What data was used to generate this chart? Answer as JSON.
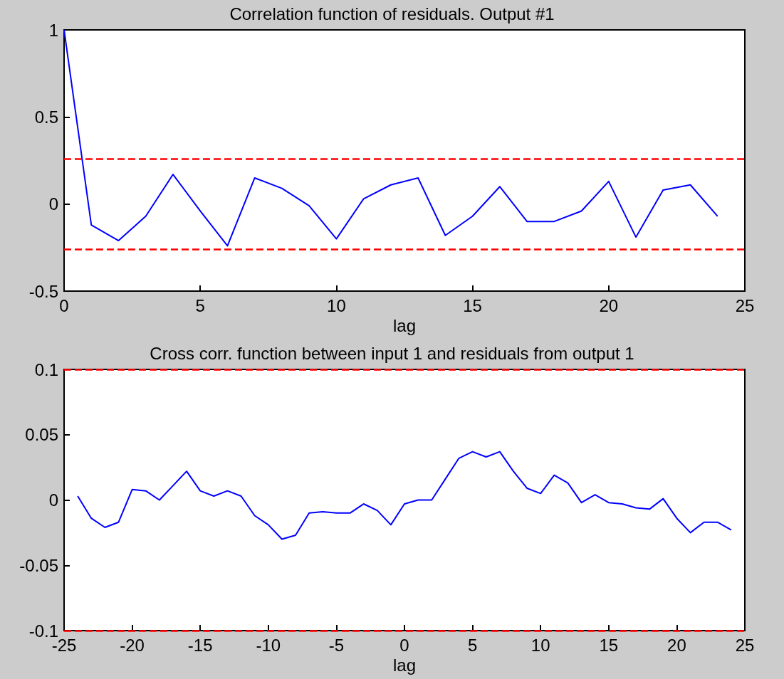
{
  "chart_data": [
    {
      "type": "line",
      "title": "Correlation function of residuals. Output #1",
      "xlabel": "lag",
      "x": [
        0,
        1,
        2,
        3,
        4,
        5,
        6,
        7,
        8,
        9,
        10,
        11,
        12,
        13,
        14,
        15,
        16,
        17,
        18,
        19,
        20,
        21,
        22,
        23,
        24
      ],
      "series": [
        {
          "color": "#0000ff",
          "values": [
            1,
            -0.12,
            -0.21,
            -0.07,
            0.17,
            -0.04,
            -0.24,
            0.15,
            0.09,
            -0.01,
            -0.2,
            0.03,
            0.11,
            0.15,
            -0.18,
            -0.07,
            0.1,
            -0.1,
            -0.1,
            -0.04,
            0.13,
            -0.19,
            0.08,
            0.11,
            -0.07
          ]
        }
      ],
      "xlim": [
        0,
        25
      ],
      "xticks": [
        0,
        5,
        10,
        15,
        20,
        25
      ],
      "ylim": [
        -0.5,
        1
      ],
      "yticks": [
        -0.5,
        0,
        0.5,
        1
      ],
      "ref_lines": [
        {
          "axis": "y",
          "value": 0.26,
          "color": "#ff0000",
          "line_style": "dashed"
        },
        {
          "axis": "y",
          "value": -0.26,
          "color": "#ff0000",
          "line_style": "dashed"
        }
      ],
      "grid": false,
      "legend": false,
      "marker": "none",
      "line_style": "solid"
    },
    {
      "type": "line",
      "title": "Cross corr. function between input 1 and residuals from output 1",
      "xlabel": "lag",
      "x": [
        -24,
        -23,
        -22,
        -21,
        -20,
        -19,
        -18,
        -17,
        -16,
        -15,
        -14,
        -13,
        -12,
        -11,
        -10,
        -9,
        -8,
        -7,
        -6,
        -5,
        -4,
        -3,
        -2,
        -1,
        0,
        1,
        2,
        3,
        4,
        5,
        6,
        7,
        8,
        9,
        10,
        11,
        12,
        13,
        14,
        15,
        16,
        17,
        18,
        19,
        20,
        21,
        22,
        23,
        24
      ],
      "series": [
        {
          "color": "#0000ff",
          "values": [
            0.003,
            -0.014,
            -0.021,
            -0.017,
            0.008,
            0.007,
            0,
            0.011,
            0.022,
            0.007,
            0.003,
            0.007,
            0.003,
            -0.012,
            -0.019,
            -0.03,
            -0.027,
            -0.01,
            -0.009,
            -0.01,
            -0.01,
            -0.003,
            -0.008,
            -0.019,
            -0.003,
            0,
            0,
            0.016,
            0.032,
            0.037,
            0.033,
            0.037,
            0.022,
            0.009,
            0.005,
            0.019,
            0.013,
            -0.002,
            0.004,
            -0.002,
            -0.003,
            -0.006,
            -0.007,
            0.001,
            -0.014,
            -0.025,
            -0.017,
            -0.017,
            -0.023
          ]
        }
      ],
      "xlim": [
        -25,
        25
      ],
      "xticks": [
        -25,
        -20,
        -15,
        -10,
        -5,
        0,
        5,
        10,
        15,
        20,
        25
      ],
      "ylim": [
        -0.1,
        0.1
      ],
      "yticks": [
        -0.1,
        -0.05,
        0,
        0.05,
        0.1
      ],
      "ref_lines": [
        {
          "axis": "y",
          "value": 0.1,
          "color": "#ff0000",
          "line_style": "dashed"
        },
        {
          "axis": "y",
          "value": -0.1,
          "color": "#ff0000",
          "line_style": "dashed"
        }
      ],
      "grid": false,
      "legend": false,
      "marker": "none",
      "line_style": "solid"
    }
  ]
}
